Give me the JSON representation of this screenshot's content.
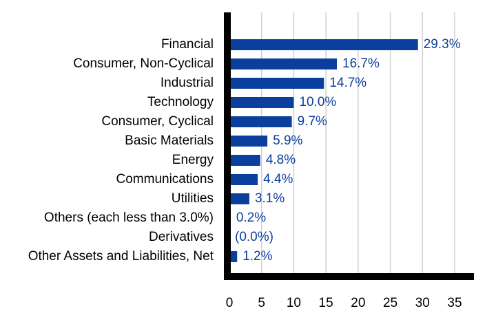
{
  "chart_data": {
    "type": "bar",
    "orientation": "horizontal",
    "categories": [
      "Financial",
      "Consumer, Non-Cyclical",
      "Industrial",
      "Technology",
      "Consumer, Cyclical",
      "Basic Materials",
      "Energy",
      "Communications",
      "Utilities",
      "Others (each less than 3.0%)",
      "Derivatives",
      "Other Assets and Liabilities, Net"
    ],
    "values": [
      29.3,
      16.7,
      14.7,
      10.0,
      9.7,
      5.9,
      4.8,
      4.4,
      3.1,
      0.2,
      0.0,
      1.2
    ],
    "value_labels": [
      "29.3%",
      "16.7%",
      "14.7%",
      "10.0%",
      "9.7%",
      "5.9%",
      "4.8%",
      "4.4%",
      "3.1%",
      "0.2%",
      "(0.0%)",
      "1.2%"
    ],
    "xlim": [
      0,
      38
    ],
    "xticks": [
      0,
      5,
      10,
      15,
      20,
      25,
      30,
      35
    ],
    "xtick_labels": [
      "0",
      "5",
      "10",
      "15",
      "20",
      "25",
      "30",
      "35"
    ],
    "title": "",
    "xlabel": "",
    "ylabel": "",
    "grid": "vertical",
    "colors": {
      "bar": "#0b3f9e",
      "value_label": "#0b3f9e",
      "grid": "#d0d0d0",
      "axis": "#000000"
    }
  }
}
